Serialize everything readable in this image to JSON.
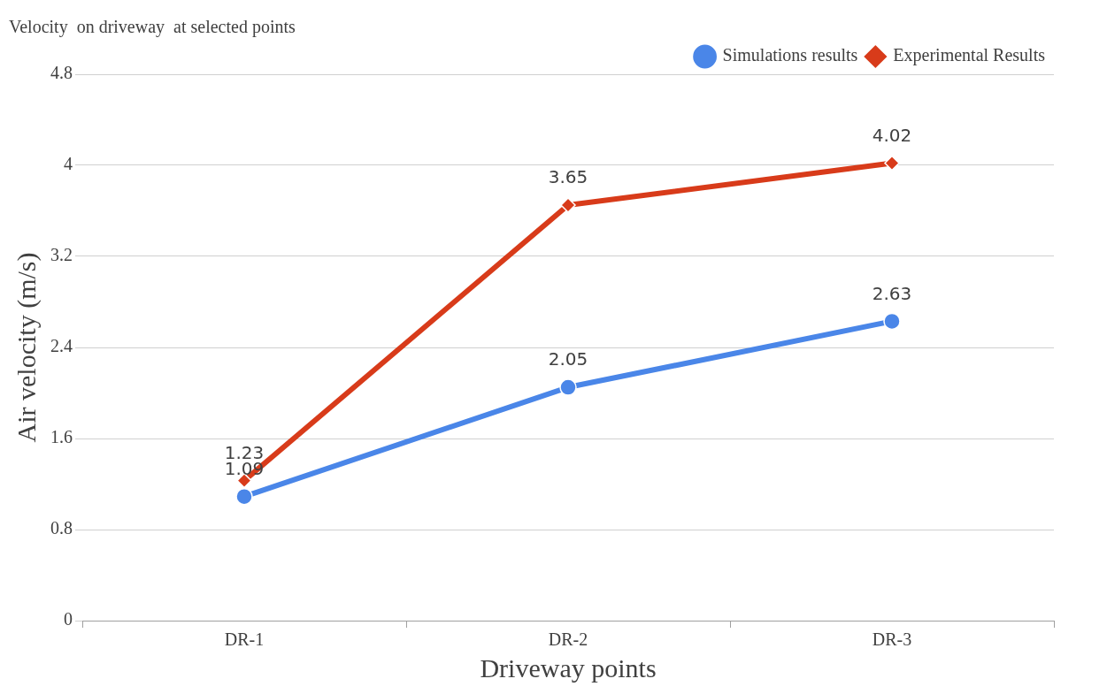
{
  "chart_data": {
    "type": "line",
    "title": "Velocity  on driveway  at selected points",
    "xlabel": "Driveway points",
    "ylabel": "Air velocity (m/s)",
    "categories": [
      "DR-1",
      "DR-2",
      "DR-3"
    ],
    "series": [
      {
        "name": "Simulations results",
        "color": "#4a86e8",
        "marker": "circle",
        "values": [
          1.09,
          2.05,
          2.63
        ]
      },
      {
        "name": "Experimental Results",
        "color": "#d83b1a",
        "marker": "diamond",
        "values": [
          1.23,
          3.65,
          4.02
        ]
      }
    ],
    "ylim": [
      0,
      4.8
    ],
    "yticks": [
      0,
      0.8,
      1.6,
      2.4,
      3.2,
      4,
      4.8
    ],
    "grid": "y",
    "legend": "top right",
    "data_labels": true,
    "line_style": "solid"
  }
}
